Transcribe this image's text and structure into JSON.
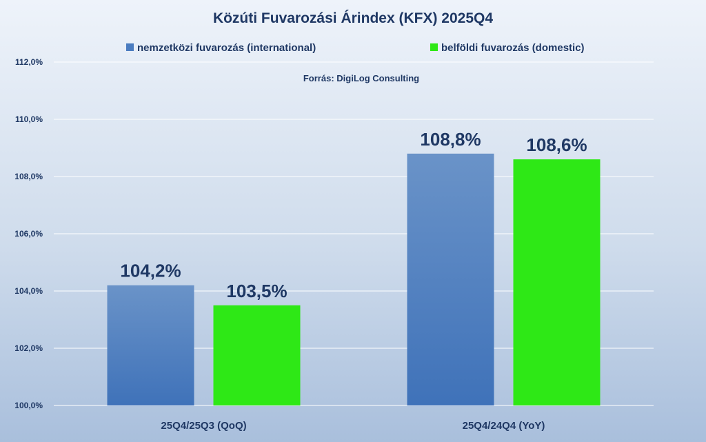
{
  "chart_data": {
    "type": "bar",
    "title": "Közúti Fuvarozási Árindex (KFX) 2025Q4",
    "source": "Forrás: DigiLog Consulting",
    "categories": [
      "25Q4/25Q3 (QoQ)",
      "25Q4/24Q4 (YoY)"
    ],
    "series": [
      {
        "name": "nemzetközi fuvarozás (international)",
        "color": "#4a7cc0",
        "values": [
          104.2,
          108.8
        ],
        "labels": [
          "104,2%",
          "108,8%"
        ]
      },
      {
        "name": "belföldi fuvarozás (domestic)",
        "color": "#2ee816",
        "values": [
          103.5,
          108.6
        ],
        "labels": [
          "103,5%",
          "108,6%"
        ]
      }
    ],
    "ylim": [
      100,
      112
    ],
    "yticks": [
      100,
      102,
      104,
      106,
      108,
      110,
      112
    ],
    "ytick_labels": [
      "100,0%",
      "102,0%",
      "104,0%",
      "106,0%",
      "108,0%",
      "110,0%",
      "112,0%"
    ],
    "xlabel": "",
    "ylabel": "",
    "grid": true,
    "legend_position": "top"
  }
}
